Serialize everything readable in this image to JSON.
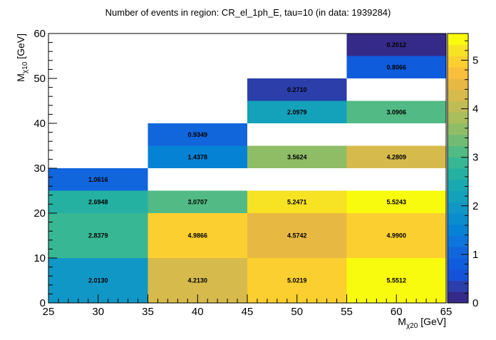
{
  "chart_data": {
    "type": "heatmap",
    "title": "Number of events in region: CR_el_1ph_E, tau=10 (in data: 1939284)",
    "xlabel": {
      "main": "M",
      "sub": "χ20",
      "unit": " [GeV]"
    },
    "ylabel": {
      "main": "M",
      "sub": "χ10",
      "unit": " [GeV]"
    },
    "xlim": [
      25,
      65
    ],
    "ylim": [
      0,
      60
    ],
    "zlim": [
      0,
      5.55
    ],
    "x_major_ticks": [
      25,
      30,
      35,
      40,
      45,
      50,
      55,
      60,
      65
    ],
    "y_major_ticks": [
      0,
      10,
      20,
      30,
      40,
      50,
      60
    ],
    "z_major_ticks": [
      0,
      1,
      2,
      3,
      4,
      5
    ],
    "grid": false,
    "colorbar": "right",
    "cells": [
      {
        "x0": 25,
        "x1": 35,
        "y0": 0,
        "y1": 10,
        "value": 2.013,
        "label": "2.0130"
      },
      {
        "x0": 35,
        "x1": 45,
        "y0": 0,
        "y1": 10,
        "value": 4.213,
        "label": "4.2130"
      },
      {
        "x0": 45,
        "x1": 55,
        "y0": 0,
        "y1": 10,
        "value": 5.0219,
        "label": "5.0219"
      },
      {
        "x0": 55,
        "x1": 65,
        "y0": 0,
        "y1": 10,
        "value": 5.5512,
        "label": "5.5512"
      },
      {
        "x0": 25,
        "x1": 35,
        "y0": 10,
        "y1": 20,
        "value": 2.8379,
        "label": "2.8379"
      },
      {
        "x0": 35,
        "x1": 45,
        "y0": 10,
        "y1": 20,
        "value": 4.9866,
        "label": "4.9866"
      },
      {
        "x0": 45,
        "x1": 55,
        "y0": 10,
        "y1": 20,
        "value": 4.5742,
        "label": "4.5742"
      },
      {
        "x0": 55,
        "x1": 65,
        "y0": 10,
        "y1": 20,
        "value": 4.99,
        "label": "4.9900"
      },
      {
        "x0": 25,
        "x1": 35,
        "y0": 20,
        "y1": 25,
        "value": 2.6948,
        "label": "2.6948"
      },
      {
        "x0": 35,
        "x1": 45,
        "y0": 20,
        "y1": 25,
        "value": 3.0707,
        "label": "3.0707"
      },
      {
        "x0": 45,
        "x1": 55,
        "y0": 20,
        "y1": 25,
        "value": 5.2471,
        "label": "5.2471"
      },
      {
        "x0": 55,
        "x1": 65,
        "y0": 20,
        "y1": 25,
        "value": 5.5243,
        "label": "5.5243"
      },
      {
        "x0": 25,
        "x1": 35,
        "y0": 25,
        "y1": 30,
        "value": 1.0616,
        "label": "1.0616"
      },
      {
        "x0": 35,
        "x1": 45,
        "y0": 30,
        "y1": 35,
        "value": 1.4378,
        "label": "1.4378"
      },
      {
        "x0": 45,
        "x1": 55,
        "y0": 30,
        "y1": 35,
        "value": 3.5624,
        "label": "3.5624"
      },
      {
        "x0": 55,
        "x1": 65,
        "y0": 30,
        "y1": 35,
        "value": 4.2809,
        "label": "4.2809"
      },
      {
        "x0": 35,
        "x1": 45,
        "y0": 35,
        "y1": 40,
        "value": 0.9349,
        "label": "0.9349"
      },
      {
        "x0": 45,
        "x1": 55,
        "y0": 40,
        "y1": 45,
        "value": 2.0979,
        "label": "2.0979"
      },
      {
        "x0": 55,
        "x1": 65,
        "y0": 40,
        "y1": 45,
        "value": 3.0906,
        "label": "3.0906"
      },
      {
        "x0": 45,
        "x1": 55,
        "y0": 45,
        "y1": 50,
        "value": 0.271,
        "label": "0.2710"
      },
      {
        "x0": 55,
        "x1": 65,
        "y0": 50,
        "y1": 55,
        "value": 0.8066,
        "label": "0.8066"
      },
      {
        "x0": 55,
        "x1": 65,
        "y0": 55,
        "y1": 60,
        "value": 0.2012,
        "label": "0.2012"
      }
    ],
    "palette": [
      "#352a87",
      "#2b3eaa",
      "#1452d9",
      "#0f5cdd",
      "#1166dc",
      "#0d75dc",
      "#0682d5",
      "#0a8dcd",
      "#1197c5",
      "#14a1ba",
      "#18aab0",
      "#25b1a1",
      "#38b794",
      "#52ba84",
      "#72bb74",
      "#8fbd66",
      "#a9bd5d",
      "#c0bc55",
      "#d6ba4c",
      "#e8b942",
      "#f9be3a",
      "#fbcf2f",
      "#f7e224",
      "#f9fb0e"
    ]
  }
}
